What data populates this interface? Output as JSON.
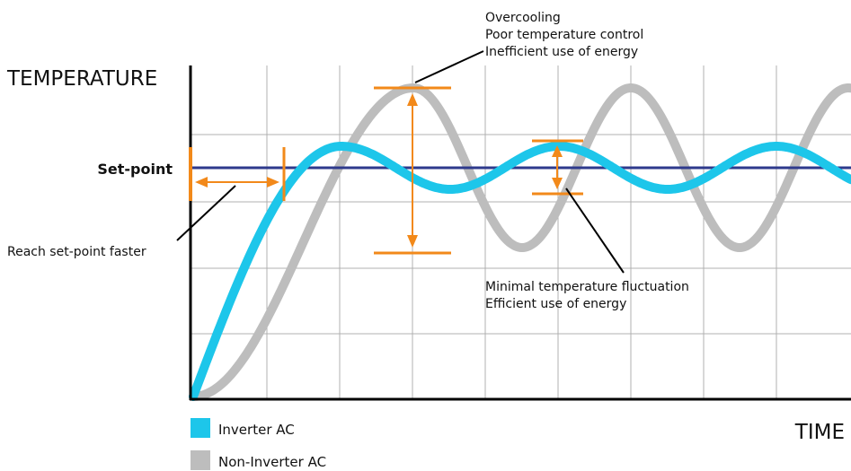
{
  "chart_data": {
    "type": "line",
    "title": "",
    "ylabel": "TEMPERATURE",
    "xlabel": "TIME",
    "setpoint_label": "Set-point",
    "grid": true,
    "legend_placement": "bottom-left",
    "series": [
      {
        "name": "Inverter AC",
        "color": "#1dc6ea"
      },
      {
        "name": "Non-Inverter AC",
        "color": "#bdbdbd"
      }
    ],
    "colors": {
      "setpoint": "#2e3a8c",
      "annotation": "#f2891a",
      "grid": "#b0b0b0",
      "axis": "#000000"
    },
    "annotations": {
      "overcooling": [
        "Overcooling",
        "Poor temperature control",
        "Inefficient use of energy"
      ],
      "minimal": [
        "Minimal temperature fluctuation",
        "Efficient use of energy"
      ],
      "faster": "Reach set-point faster"
    }
  }
}
